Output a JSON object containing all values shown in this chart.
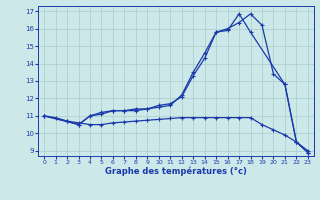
{
  "xlabel": "Graphe des températures (°c)",
  "xlim": [
    -0.5,
    23.5
  ],
  "ylim": [
    8.7,
    17.3
  ],
  "yticks": [
    9,
    10,
    11,
    12,
    13,
    14,
    15,
    16,
    17
  ],
  "xticks": [
    0,
    1,
    2,
    3,
    4,
    5,
    6,
    7,
    8,
    9,
    10,
    11,
    12,
    13,
    14,
    15,
    16,
    17,
    18,
    19,
    20,
    21,
    22,
    23
  ],
  "bg_color": "#cce8e8",
  "line_color": "#1a3aab",
  "grid_color": "#aacccc",
  "line_top_x": [
    0,
    2,
    3,
    4,
    5,
    6,
    7,
    8,
    9,
    10,
    11,
    12,
    13,
    14,
    15,
    16,
    17,
    18,
    21,
    22,
    23
  ],
  "line_top_y": [
    11.0,
    10.7,
    10.5,
    11.0,
    11.1,
    11.3,
    11.3,
    11.3,
    11.4,
    11.5,
    11.6,
    12.2,
    13.5,
    14.6,
    15.8,
    15.9,
    16.85,
    15.8,
    12.8,
    9.5,
    8.9
  ],
  "line_mid_x": [
    0,
    3,
    4,
    5,
    6,
    7,
    8,
    9,
    10,
    11,
    12,
    13,
    14,
    15,
    16,
    17,
    18,
    19,
    20,
    21,
    22,
    23
  ],
  "line_mid_y": [
    11.0,
    10.5,
    11.0,
    11.2,
    11.3,
    11.3,
    11.4,
    11.4,
    11.6,
    11.7,
    12.1,
    13.3,
    14.3,
    15.8,
    16.0,
    16.35,
    16.85,
    16.2,
    13.4,
    12.8,
    9.5,
    8.9
  ],
  "line_bot_x": [
    0,
    1,
    2,
    3,
    4,
    5,
    6,
    7,
    8,
    9,
    10,
    11,
    12,
    13,
    14,
    15,
    16,
    17,
    18,
    19,
    20,
    21,
    22,
    23
  ],
  "line_bot_y": [
    11.0,
    10.9,
    10.7,
    10.6,
    10.5,
    10.5,
    10.6,
    10.65,
    10.7,
    10.75,
    10.8,
    10.85,
    10.9,
    10.9,
    10.9,
    10.9,
    10.9,
    10.9,
    10.9,
    10.5,
    10.2,
    9.9,
    9.5,
    9.0
  ]
}
